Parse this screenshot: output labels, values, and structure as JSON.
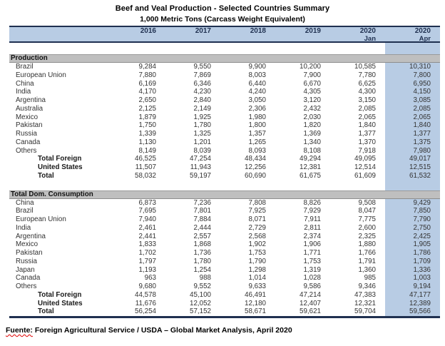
{
  "page": {
    "title": "Beef and Veal Production - Selected Countries Summary",
    "subtitle": "1,000 Metric Tons (Carcass Weight Equivalent)"
  },
  "footer": {
    "source_label": "Fuente:",
    "source_text": "Foreign Agricultural Service / USDA – Global Market Analysis, April 2020"
  },
  "colors": {
    "header_fill": "#b8cce4",
    "highlight_fill": "#b8cce4",
    "section_fill": "#bfbfbf",
    "rule": "#1f3050",
    "squiggle": "#e00000"
  },
  "table": {
    "columns": [
      {
        "label": "2016",
        "sub": ""
      },
      {
        "label": "2017",
        "sub": ""
      },
      {
        "label": "2018",
        "sub": ""
      },
      {
        "label": "2019",
        "sub": ""
      },
      {
        "label": "2020",
        "sub": "Jan"
      },
      {
        "label": "2020",
        "sub": "Apr"
      }
    ],
    "sections": [
      {
        "name": "Production",
        "rows": [
          {
            "label": "Brazil",
            "type": "country",
            "values": [
              "9,284",
              "9,550",
              "9,900",
              "10,200",
              "10,585",
              "10,310"
            ]
          },
          {
            "label": "European Union",
            "type": "country",
            "values": [
              "7,880",
              "7,869",
              "8,003",
              "7,900",
              "7,780",
              "7,800"
            ]
          },
          {
            "label": "China",
            "type": "country",
            "values": [
              "6,169",
              "6,346",
              "6,440",
              "6,670",
              "6,625",
              "6,950"
            ]
          },
          {
            "label": "India",
            "type": "country",
            "values": [
              "4,170",
              "4,230",
              "4,240",
              "4,305",
              "4,300",
              "4,150"
            ]
          },
          {
            "label": "Argentina",
            "type": "country",
            "values": [
              "2,650",
              "2,840",
              "3,050",
              "3,120",
              "3,150",
              "3,085"
            ]
          },
          {
            "label": "Australia",
            "type": "country",
            "values": [
              "2,125",
              "2,149",
              "2,306",
              "2,432",
              "2,085",
              "2,085"
            ]
          },
          {
            "label": "Mexico",
            "type": "country",
            "values": [
              "1,879",
              "1,925",
              "1,980",
              "2,030",
              "2,065",
              "2,065"
            ]
          },
          {
            "label": "Pakistan",
            "type": "country",
            "values": [
              "1,750",
              "1,780",
              "1,800",
              "1,820",
              "1,840",
              "1,840"
            ]
          },
          {
            "label": "Russia",
            "type": "country",
            "values": [
              "1,339",
              "1,325",
              "1,357",
              "1,369",
              "1,377",
              "1,377"
            ]
          },
          {
            "label": "Canada",
            "type": "country",
            "values": [
              "1,130",
              "1,201",
              "1,265",
              "1,340",
              "1,370",
              "1,375"
            ]
          },
          {
            "label": "Others",
            "type": "country",
            "values": [
              "8,149",
              "8,039",
              "8,093",
              "8,108",
              "7,918",
              "7,980"
            ]
          },
          {
            "label": "Total Foreign",
            "type": "total",
            "values": [
              "46,525",
              "47,254",
              "48,434",
              "49,294",
              "49,095",
              "49,017"
            ]
          },
          {
            "label": "United States",
            "type": "total",
            "values": [
              "11,507",
              "11,943",
              "12,256",
              "12,381",
              "12,514",
              "12,515"
            ]
          },
          {
            "label": "Total",
            "type": "total",
            "values": [
              "58,032",
              "59,197",
              "60,690",
              "61,675",
              "61,609",
              "61,532"
            ]
          }
        ]
      },
      {
        "name": "Total Dom. Consumption",
        "rows": [
          {
            "label": "China",
            "type": "country",
            "values": [
              "6,873",
              "7,236",
              "7,808",
              "8,826",
              "9,508",
              "9,429"
            ]
          },
          {
            "label": "Brazil",
            "type": "country",
            "values": [
              "7,695",
              "7,801",
              "7,925",
              "7,929",
              "8,047",
              "7,850"
            ]
          },
          {
            "label": "European Union",
            "type": "country",
            "values": [
              "7,940",
              "7,884",
              "8,071",
              "7,911",
              "7,775",
              "7,790"
            ]
          },
          {
            "label": "India",
            "type": "country",
            "values": [
              "2,461",
              "2,444",
              "2,729",
              "2,811",
              "2,600",
              "2,750"
            ]
          },
          {
            "label": "Argentina",
            "type": "country",
            "values": [
              "2,441",
              "2,557",
              "2,568",
              "2,374",
              "2,325",
              "2,425"
            ]
          },
          {
            "label": "Mexico",
            "type": "country",
            "values": [
              "1,833",
              "1,868",
              "1,902",
              "1,906",
              "1,880",
              "1,905"
            ]
          },
          {
            "label": "Pakistan",
            "type": "country",
            "values": [
              "1,702",
              "1,736",
              "1,753",
              "1,771",
              "1,766",
              "1,786"
            ]
          },
          {
            "label": "Russia",
            "type": "country",
            "values": [
              "1,797",
              "1,780",
              "1,790",
              "1,753",
              "1,791",
              "1,709"
            ]
          },
          {
            "label": "Japan",
            "type": "country",
            "values": [
              "1,193",
              "1,254",
              "1,298",
              "1,319",
              "1,360",
              "1,336"
            ]
          },
          {
            "label": "Canada",
            "type": "country",
            "values": [
              "963",
              "988",
              "1,014",
              "1,028",
              "985",
              "1,003"
            ]
          },
          {
            "label": "Others",
            "type": "country",
            "values": [
              "9,680",
              "9,552",
              "9,633",
              "9,586",
              "9,346",
              "9,194"
            ]
          },
          {
            "label": "Total Foreign",
            "type": "total",
            "values": [
              "44,578",
              "45,100",
              "46,491",
              "47,214",
              "47,383",
              "47,177"
            ]
          },
          {
            "label": "United States",
            "type": "total",
            "values": [
              "11,676",
              "12,052",
              "12,180",
              "12,407",
              "12,321",
              "12,389"
            ]
          },
          {
            "label": "Total",
            "type": "total",
            "values": [
              "56,254",
              "57,152",
              "58,671",
              "59,621",
              "59,704",
              "59,566"
            ]
          }
        ]
      }
    ]
  }
}
